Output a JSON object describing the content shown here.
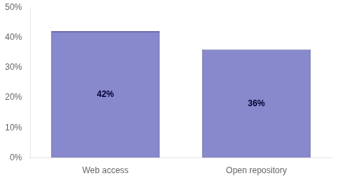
{
  "chart_data": {
    "type": "bar",
    "categories": [
      "Web access",
      "Open repository"
    ],
    "values": [
      42,
      36
    ],
    "value_labels": [
      "42%",
      "36%"
    ],
    "data_labels": true,
    "color": "#8888CC",
    "ylim": [
      0,
      50
    ],
    "yticks": [
      {
        "value": 0,
        "label": "0%"
      },
      {
        "value": 10,
        "label": "10%"
      },
      {
        "value": 20,
        "label": "20%"
      },
      {
        "value": 30,
        "label": "30%"
      },
      {
        "value": 40,
        "label": "40%"
      },
      {
        "value": 50,
        "label": "50%"
      }
    ],
    "grid": false
  }
}
